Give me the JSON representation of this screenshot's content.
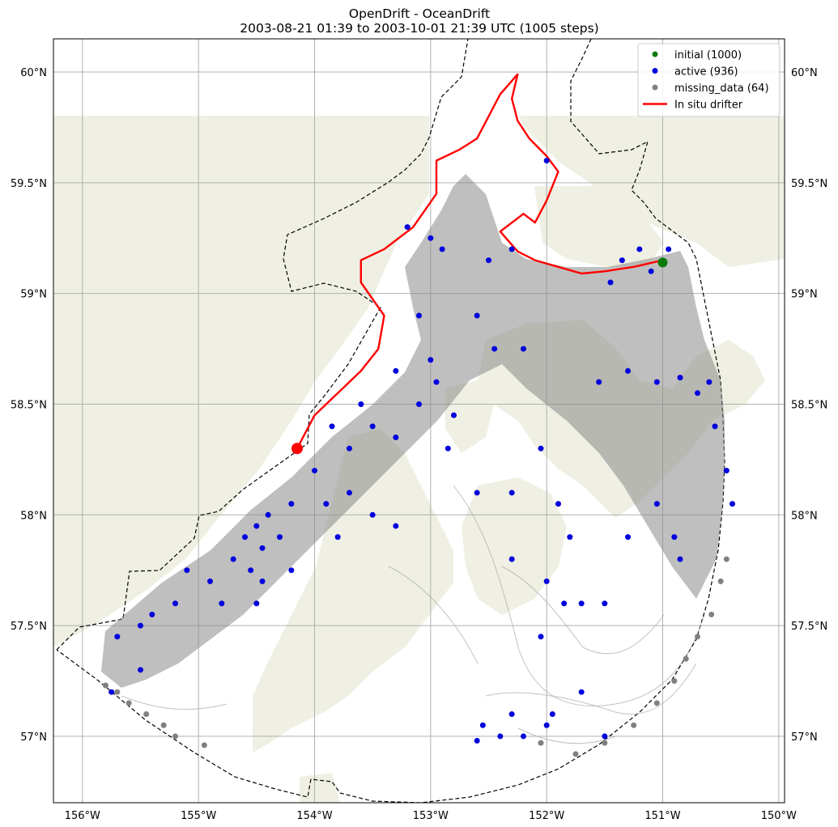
{
  "chart_data": {
    "type": "scatter",
    "title": "OpenDrift - OceanDrift",
    "subtitle": "2003-08-21 01:39 to 2003-10-01 21:39 UTC (1005 steps)",
    "xlabel": "",
    "ylabel": "",
    "projection": "map (lon/lat)",
    "xlim": [
      -156.25,
      -149.95
    ],
    "ylim": [
      56.7,
      60.15
    ],
    "x_ticks": [
      -156,
      -155,
      -154,
      -153,
      -152,
      -151,
      -150
    ],
    "x_tick_labels": [
      "156°W",
      "155°W",
      "154°W",
      "153°W",
      "152°W",
      "151°W",
      "150°W"
    ],
    "y_ticks": [
      57,
      57.5,
      58,
      58.5,
      59,
      59.5,
      60
    ],
    "y_tick_labels": [
      "57°N",
      "57.5°N",
      "58°N",
      "58.5°N",
      "59°N",
      "59.5°N",
      "60°N"
    ],
    "grid": true,
    "legend_position": "top-right",
    "colors": {
      "land": "#efefe3",
      "initial": "#0a7a0a",
      "active": "#0000dd",
      "missing": "#808080",
      "trajectory": "#888888",
      "drifter": "#ff0000",
      "grid": "#b0b0b0"
    },
    "legend": [
      {
        "label": "initial (1000)",
        "kind": "point",
        "color": "#0a7a0a"
      },
      {
        "label": "active (936)",
        "kind": "point",
        "color": "#0000dd"
      },
      {
        "label": "missing_data (64)",
        "kind": "point",
        "color": "#808080"
      },
      {
        "label": "In situ drifter",
        "kind": "line",
        "color": "#ff0000"
      }
    ],
    "series": [
      {
        "name": "initial (1000)",
        "points": [
          [
            -151.0,
            59.14
          ]
        ]
      },
      {
        "name": "In situ drifter",
        "points": [
          [
            -151.0,
            59.15
          ],
          [
            -151.25,
            59.12
          ],
          [
            -151.5,
            59.1
          ],
          [
            -151.7,
            59.09
          ],
          [
            -151.9,
            59.12
          ],
          [
            -152.1,
            59.15
          ],
          [
            -152.25,
            59.19
          ],
          [
            -152.4,
            59.28
          ],
          [
            -152.2,
            59.36
          ],
          [
            -152.1,
            59.32
          ],
          [
            -152.0,
            59.42
          ],
          [
            -151.9,
            59.55
          ],
          [
            -152.0,
            59.62
          ],
          [
            -152.15,
            59.7
          ],
          [
            -152.25,
            59.78
          ],
          [
            -152.3,
            59.88
          ],
          [
            -152.25,
            59.99
          ],
          [
            -152.4,
            59.9
          ],
          [
            -152.5,
            59.8
          ],
          [
            -152.6,
            59.7
          ],
          [
            -152.75,
            59.65
          ],
          [
            -152.95,
            59.6
          ],
          [
            -152.95,
            59.45
          ],
          [
            -153.15,
            59.3
          ],
          [
            -153.4,
            59.2
          ],
          [
            -153.6,
            59.15
          ],
          [
            -153.6,
            59.05
          ],
          [
            -153.4,
            58.9
          ],
          [
            -153.45,
            58.75
          ],
          [
            -153.6,
            58.65
          ],
          [
            -153.8,
            58.55
          ],
          [
            -154.0,
            58.45
          ],
          [
            -154.15,
            58.3
          ]
        ]
      },
      {
        "name": "active (936)",
        "points": [
          [
            -151.35,
            59.15
          ],
          [
            -151.2,
            59.2
          ],
          [
            -151.1,
            59.1
          ],
          [
            -151.45,
            59.05
          ],
          [
            -150.95,
            59.2
          ],
          [
            -151.55,
            58.6
          ],
          [
            -151.3,
            58.65
          ],
          [
            -151.05,
            58.6
          ],
          [
            -150.85,
            58.62
          ],
          [
            -150.7,
            58.55
          ],
          [
            -150.6,
            58.6
          ],
          [
            -150.55,
            58.4
          ],
          [
            -150.45,
            58.2
          ],
          [
            -150.4,
            58.05
          ],
          [
            -153.2,
            59.3
          ],
          [
            -153.0,
            59.25
          ],
          [
            -152.9,
            59.2
          ],
          [
            -152.5,
            59.15
          ],
          [
            -152.3,
            59.2
          ],
          [
            -152.0,
            59.6
          ],
          [
            -152.6,
            58.9
          ],
          [
            -152.45,
            58.75
          ],
          [
            -152.2,
            58.75
          ],
          [
            -153.1,
            58.9
          ],
          [
            -153.0,
            58.7
          ],
          [
            -152.95,
            58.6
          ],
          [
            -152.8,
            58.45
          ],
          [
            -152.85,
            58.3
          ],
          [
            -153.3,
            58.65
          ],
          [
            -153.1,
            58.5
          ],
          [
            -153.3,
            58.35
          ],
          [
            -153.5,
            58.4
          ],
          [
            -153.6,
            58.5
          ],
          [
            -153.7,
            58.3
          ],
          [
            -153.85,
            58.4
          ],
          [
            -154.0,
            58.2
          ],
          [
            -153.9,
            58.05
          ],
          [
            -153.7,
            58.1
          ],
          [
            -154.2,
            58.05
          ],
          [
            -154.4,
            58.0
          ],
          [
            -154.5,
            57.95
          ],
          [
            -154.6,
            57.9
          ],
          [
            -154.45,
            57.85
          ],
          [
            -154.3,
            57.9
          ],
          [
            -154.55,
            57.75
          ],
          [
            -154.7,
            57.8
          ],
          [
            -154.2,
            57.75
          ],
          [
            -154.45,
            57.7
          ],
          [
            -154.9,
            57.7
          ],
          [
            -155.1,
            57.75
          ],
          [
            -155.2,
            57.6
          ],
          [
            -155.4,
            57.55
          ],
          [
            -155.5,
            57.5
          ],
          [
            -155.7,
            57.45
          ],
          [
            -155.5,
            57.3
          ],
          [
            -155.75,
            57.2
          ],
          [
            -154.8,
            57.6
          ],
          [
            -154.5,
            57.6
          ],
          [
            -153.8,
            57.9
          ],
          [
            -153.5,
            58.0
          ],
          [
            -153.3,
            57.95
          ],
          [
            -152.6,
            58.1
          ],
          [
            -152.3,
            57.8
          ],
          [
            -151.9,
            58.05
          ],
          [
            -151.8,
            57.9
          ],
          [
            -151.7,
            57.6
          ],
          [
            -151.85,
            57.6
          ],
          [
            -151.5,
            57.6
          ],
          [
            -151.3,
            57.9
          ],
          [
            -151.05,
            58.05
          ],
          [
            -150.9,
            57.9
          ],
          [
            -150.85,
            57.8
          ],
          [
            -152.05,
            58.3
          ],
          [
            -152.3,
            58.1
          ],
          [
            -152.0,
            57.7
          ],
          [
            -152.05,
            57.45
          ],
          [
            -152.3,
            57.1
          ],
          [
            -152.55,
            57.05
          ],
          [
            -152.6,
            56.98
          ],
          [
            -152.4,
            57.0
          ],
          [
            -152.2,
            57.0
          ],
          [
            -152.0,
            57.05
          ],
          [
            -151.95,
            57.1
          ],
          [
            -151.7,
            57.2
          ],
          [
            -151.5,
            57.0
          ]
        ]
      },
      {
        "name": "missing_data (64)",
        "points": [
          [
            -155.8,
            57.23
          ],
          [
            -155.7,
            57.2
          ],
          [
            -155.6,
            57.15
          ],
          [
            -155.45,
            57.1
          ],
          [
            -155.3,
            57.05
          ],
          [
            -155.2,
            57.0
          ],
          [
            -154.95,
            56.96
          ],
          [
            -150.45,
            57.8
          ],
          [
            -150.5,
            57.7
          ],
          [
            -150.58,
            57.55
          ],
          [
            -150.7,
            57.45
          ],
          [
            -150.8,
            57.35
          ],
          [
            -150.9,
            57.25
          ],
          [
            -151.05,
            57.15
          ],
          [
            -151.25,
            57.05
          ],
          [
            -151.5,
            56.97
          ],
          [
            -151.75,
            56.92
          ],
          [
            -152.05,
            56.97
          ]
        ]
      }
    ]
  }
}
